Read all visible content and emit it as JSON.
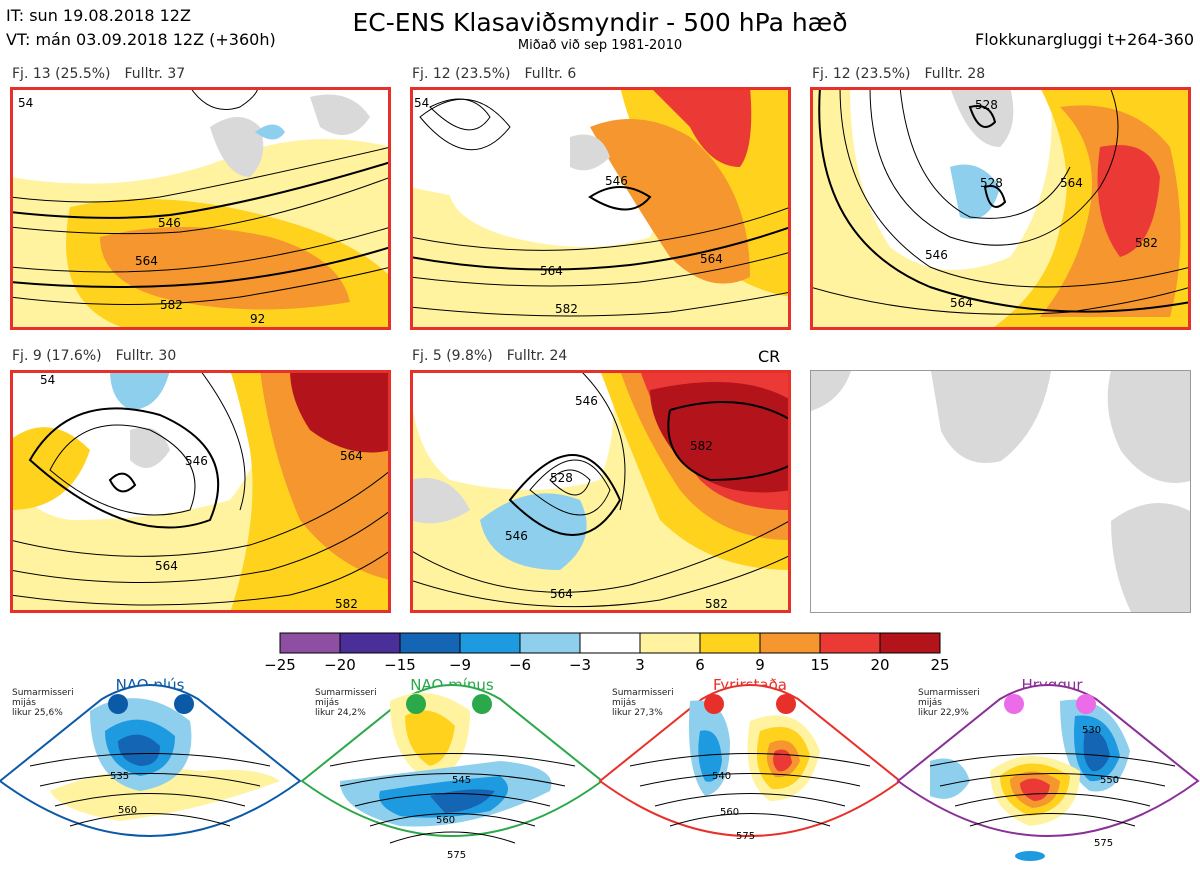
{
  "header": {
    "it_line": "IT: sun 19.08.2018 12Z",
    "vt_line": "VT: mán 03.09.2018 12Z  (+360h)",
    "title": "EC-ENS Klasaviðsmyndir - 500 hPa hæð",
    "subtitle": "Miðað við sep 1981-2010",
    "window": "Flokkunargluggi t+264-360"
  },
  "clusters": [
    {
      "freq": "Fj. 13 (25.5%)",
      "rep": "Fulltr. 37",
      "contours": [
        "546",
        "564",
        "582",
        "92",
        "54"
      ]
    },
    {
      "freq": "Fj. 12 (23.5%)",
      "rep": "Fulltr. 6",
      "contours": [
        "546",
        "564",
        "582",
        "564",
        "54"
      ]
    },
    {
      "freq": "Fj. 12 (23.5%)",
      "rep": "Fulltr. 28",
      "contours": [
        "528",
        "528",
        "546",
        "564",
        "582",
        "564"
      ]
    },
    {
      "freq": "Fj. 9 (17.6%)",
      "rep": "Fulltr. 30",
      "contours": [
        "546",
        "564",
        "564",
        "582",
        "54"
      ]
    },
    {
      "freq": "Fj. 5 (9.8%)",
      "rep": "Fulltr. 24",
      "contours": [
        "546",
        "546",
        "564",
        "582",
        "582",
        "528"
      ]
    }
  ],
  "cr_label": "CR",
  "colorbar": {
    "ticks": [
      "−25",
      "−20",
      "−15",
      "−9",
      "−6",
      "−3",
      "3",
      "6",
      "9",
      "15",
      "20",
      "25"
    ],
    "colors": [
      "#8e4fa3",
      "#4b2f98",
      "#1565b5",
      "#1e9be0",
      "#8ecfee",
      "#ffffff",
      "#fff3a0",
      "#ffd21e",
      "#f5962e",
      "#eb3a36",
      "#b3131b"
    ]
  },
  "colors": {
    "border": "#e8302b",
    "pos_light": "#fff3a0",
    "pos_med": "#ffd21e",
    "pos_high": "#f5962e",
    "pos_vhigh": "#eb3a36",
    "pos_max": "#b3131b",
    "neg_light": "#8ecfee",
    "neg_med": "#1e9be0",
    "neg_high": "#1565b5",
    "land": "#d9d9d9"
  },
  "regimes": [
    {
      "name": "NAO plús",
      "text": "Sumarmisseri\nmijás\nlikur 25,6%",
      "color": "#0b5aa8",
      "contours": [
        "535",
        "560"
      ]
    },
    {
      "name": "NAO mínus",
      "text": "Sumarmisseri\nmijás\nlikur 24,2%",
      "color": "#2aa84a",
      "contours": [
        "545",
        "560",
        "575"
      ]
    },
    {
      "name": "Fyrirstaða",
      "text": "Sumarmisseri\nmijás\nlikur 27,3%",
      "color": "#e8302b",
      "contours": [
        "540",
        "560",
        "575"
      ]
    },
    {
      "name": "Hryggur",
      "text": "Sumarmisseri\nmijás\nlikur 22,9%",
      "color": "#8a2f97",
      "contours": [
        "530",
        "550",
        "575"
      ]
    }
  ]
}
